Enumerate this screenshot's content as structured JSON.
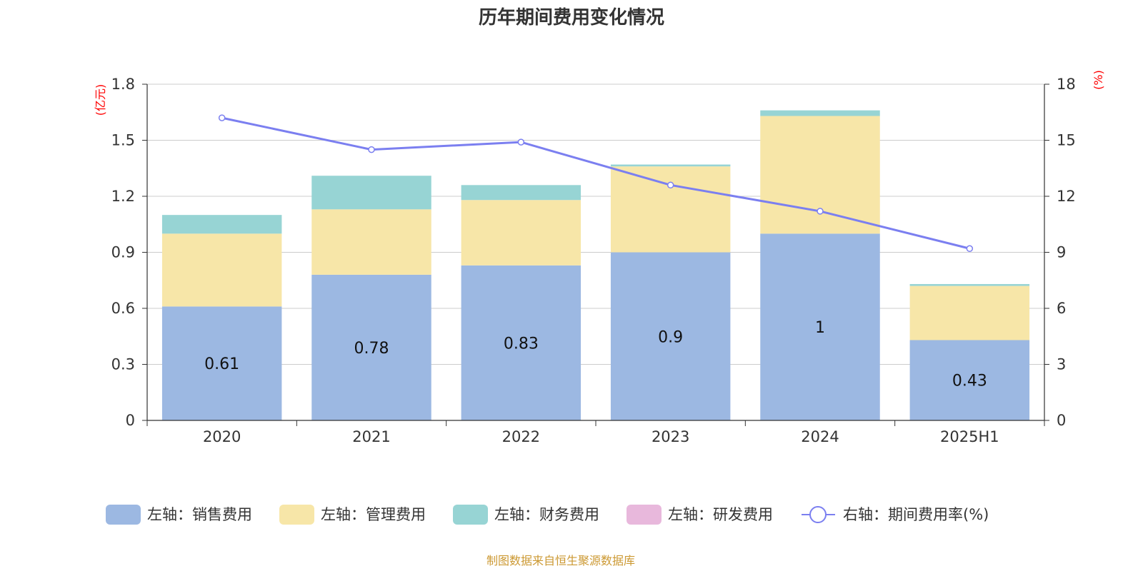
{
  "chart_data": {
    "type": "bar",
    "title": "历年期间费用变化情况",
    "categories": [
      "2020",
      "2021",
      "2022",
      "2023",
      "2024",
      "2025H1"
    ],
    "left_axis": {
      "unit": "(亿元)",
      "ylim": [
        0,
        1.8
      ],
      "ticks": [
        "0",
        "0.3",
        "0.6",
        "0.9",
        "1.2",
        "1.5",
        "1.8"
      ]
    },
    "right_axis": {
      "unit": "(%)",
      "ylim": [
        0,
        18
      ],
      "ticks": [
        "0",
        "3",
        "6",
        "9",
        "12",
        "15",
        "18"
      ]
    },
    "series": [
      {
        "name": "左轴：销售费用",
        "type": "bar",
        "axis": "left",
        "color": "#9cb8e2",
        "values": [
          0.61,
          0.78,
          0.83,
          0.9,
          1.0,
          0.43
        ],
        "labels": [
          "0.61",
          "0.78",
          "0.83",
          "0.9",
          "1",
          "0.43"
        ]
      },
      {
        "name": "左轴：管理费用",
        "type": "bar",
        "axis": "left",
        "color": "#f7e6a8",
        "values": [
          0.39,
          0.35,
          0.35,
          0.46,
          0.63,
          0.29
        ]
      },
      {
        "name": "左轴：财务费用",
        "type": "bar",
        "axis": "left",
        "color": "#97d4d4",
        "values": [
          0.1,
          0.18,
          0.08,
          0.01,
          0.03,
          0.01
        ]
      },
      {
        "name": "左轴：研发费用",
        "type": "bar",
        "axis": "left",
        "color": "#e8b8dc",
        "values": [
          0,
          0,
          0,
          0,
          0,
          0
        ]
      },
      {
        "name": "右轴：期间费用率(%)",
        "type": "line",
        "axis": "right",
        "color": "#7b7ff0",
        "values": [
          16.2,
          14.5,
          14.9,
          12.6,
          11.2,
          9.2
        ]
      }
    ],
    "legend_position": "bottom",
    "grid": true
  },
  "source_note": "制图数据来自恒生聚源数据库"
}
